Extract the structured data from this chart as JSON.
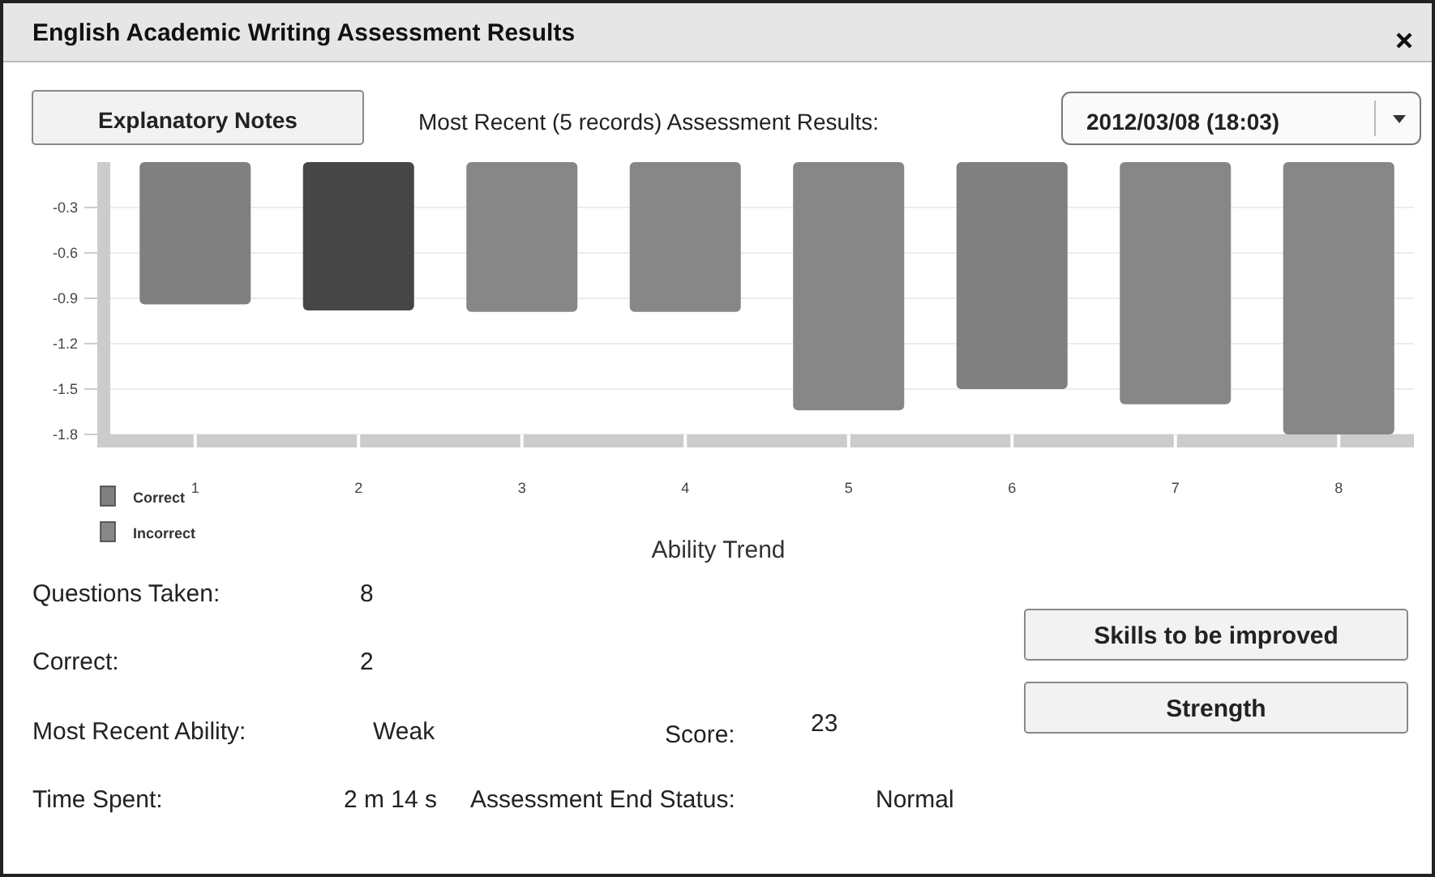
{
  "chart_data": {
    "type": "bar",
    "title": "English Academic Writing Assessment Results",
    "xlabel": "Ability Trend",
    "categories": [
      "1",
      "2",
      "3",
      "4",
      "5",
      "6",
      "7",
      "8"
    ],
    "series": [
      {
        "name": "Correct",
        "color": "#808080",
        "values": [
          -0.94,
          null,
          null,
          null,
          null,
          -1.5,
          null,
          null
        ]
      },
      {
        "name": "Incorrect",
        "color": "#878787",
        "values": [
          null,
          -0.98,
          -0.99,
          -0.99,
          -1.64,
          null,
          -1.6,
          -1.8
        ],
        "colors": [
          null,
          "#464646",
          null,
          null,
          null,
          null,
          null,
          null
        ]
      }
    ],
    "ylim": [
      -1.8,
      0
    ],
    "yticks": [
      -1.8,
      -1.5,
      -1.2,
      -0.9,
      -0.6,
      -0.3
    ],
    "grid": "y",
    "legend": "bottom left",
    "annotations": [
      "Explanatory Notes",
      "Most Recent (5 records) Assessment Results:",
      "2012/03/08  (18:03)",
      "Questions Taken:",
      "8",
      "Correct:",
      "2",
      "Most Recent Ability:",
      "Weak",
      "Score:",
      "23",
      "Time Spent:",
      "2 m 14 s",
      "Assessment End Status:",
      "Normal",
      "Skills to be improved",
      "Strength"
    ]
  }
}
